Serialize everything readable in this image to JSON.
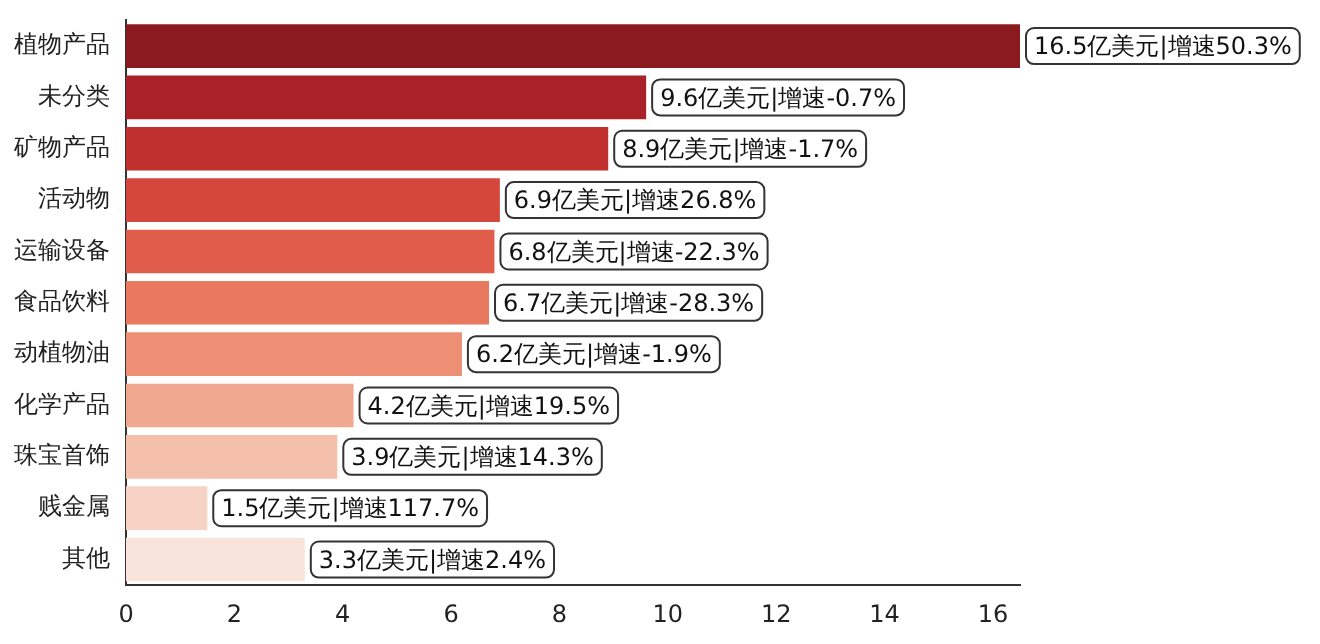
{
  "chart_data": {
    "type": "bar",
    "orientation": "horizontal",
    "categories": [
      "植物产品",
      "未分类",
      "矿物产品",
      "活动物",
      "运输设备",
      "食品饮料",
      "动植物油",
      "化学产品",
      "珠宝首饰",
      "贱金属",
      "其他"
    ],
    "values": [
      16.5,
      9.6,
      8.9,
      6.9,
      6.8,
      6.7,
      6.2,
      4.2,
      3.9,
      1.5,
      3.3
    ],
    "colors": [
      "#8b1a1e",
      "#a82228",
      "#c0302e",
      "#d5473a",
      "#e05c4b",
      "#e8795f",
      "#ec8f75",
      "#f0a890",
      "#f4c0ac",
      "#f7d3c5",
      "#f9e4dc"
    ],
    "value_labels": [
      "16.5亿美元|增速50.3%",
      "9.6亿美元|增速-0.7%",
      "8.9亿美元|增速-1.7%",
      "6.9亿美元|增速26.8%",
      "6.8亿美元|增速-22.3%",
      "6.7亿美元|增速-28.3%",
      "6.2亿美元|增速-1.9%",
      "4.2亿美元|增速19.5%",
      "3.9亿美元|增速14.3%",
      "1.5亿美元|增速117.7%",
      "3.3亿美元|增速2.4%"
    ],
    "xlim": [
      0,
      16.5
    ],
    "xticks": [
      0,
      2,
      4,
      6,
      8,
      10,
      12,
      14,
      16
    ],
    "grid": false,
    "legend": false
  }
}
